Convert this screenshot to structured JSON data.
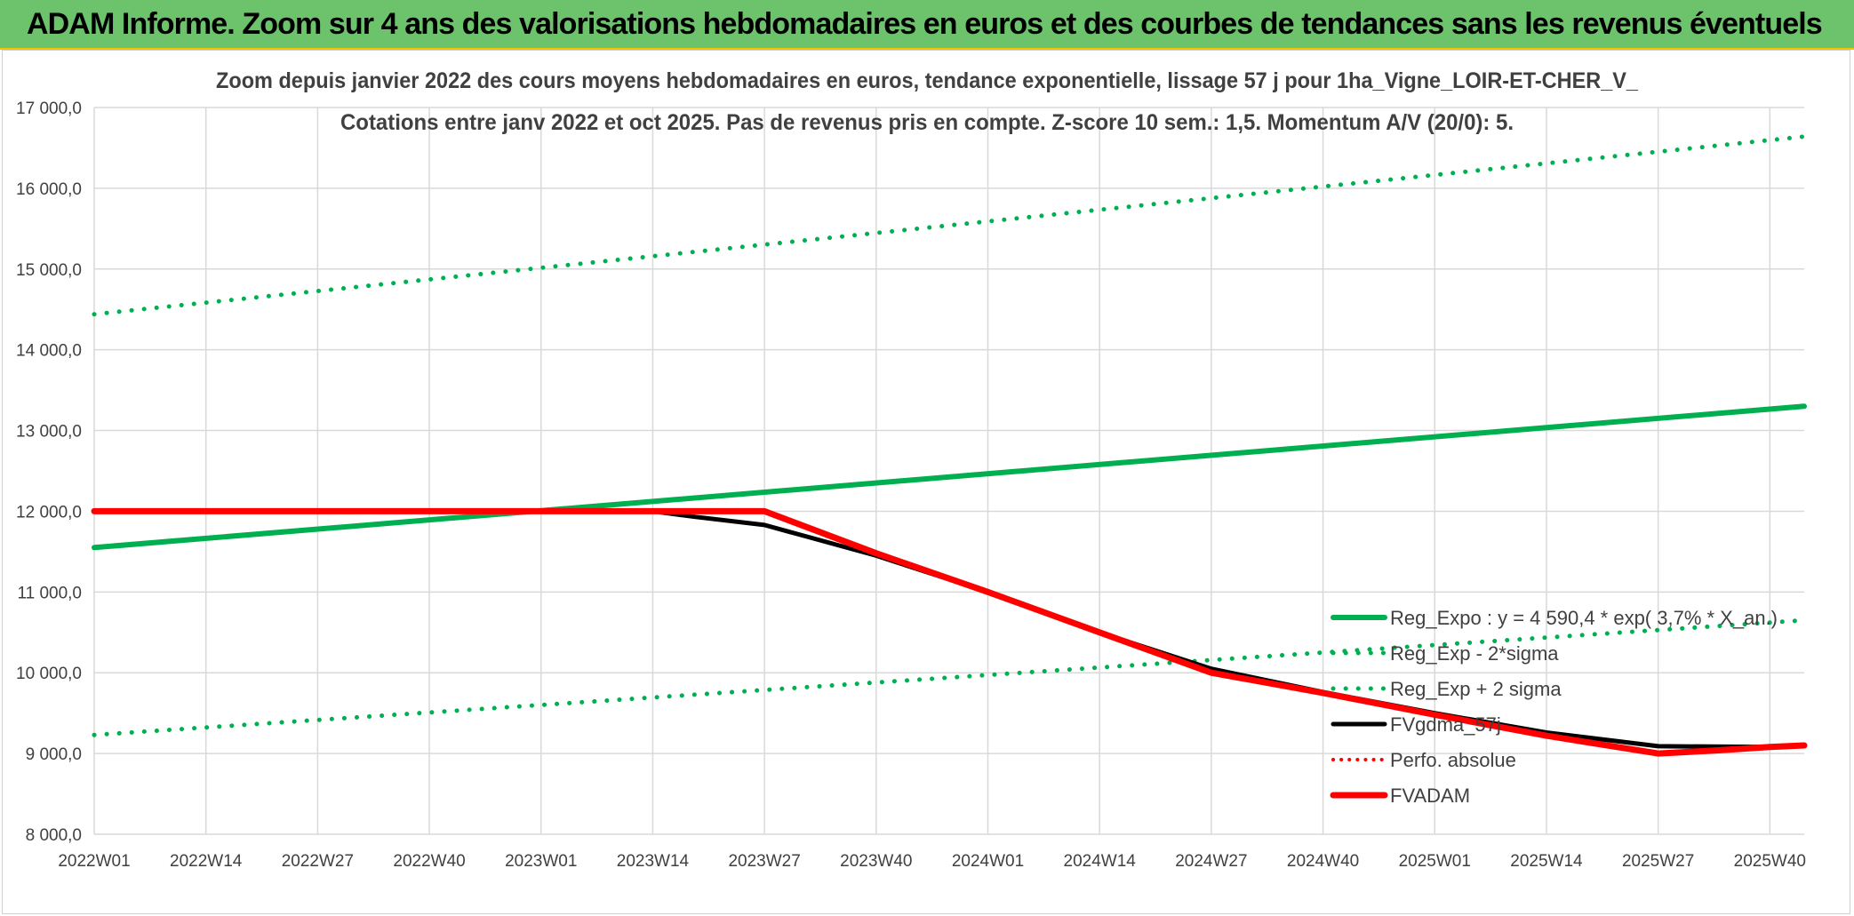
{
  "header": {
    "title": "ADAM Informe. Zoom sur 4 ans des valorisations hebdomadaires en euros et des courbes de tendances sans les revenus éventuels"
  },
  "colors": {
    "header_bg": "#6cc36c",
    "accent_line": "#f5c400",
    "trend_green": "#00b050",
    "fvadam_red": "#ff0000",
    "fvgdma_black": "#000000",
    "gridline": "#d9d9d9",
    "text": "#404040"
  },
  "chart_data": {
    "type": "line",
    "title": "Zoom depuis janvier 2022 des cours moyens hebdomadaires en euros, tendance exponentielle, lissage 57 j pour 1ha_Vigne_LOIR-ET-CHER_V_",
    "subtitle": "Cotations entre janv 2022 et oct 2025. Pas de revenus pris en compte. Z-score 10 sem.: 1,5. Momentum A/V (20/0): 5.",
    "xlabel": "",
    "ylabel": "",
    "ylim": [
      8000,
      17000
    ],
    "x_range_weeks": [
      0,
      199
    ],
    "xtick_labels": [
      "2022W01",
      "2022W14",
      "2022W27",
      "2022W40",
      "2023W01",
      "2023W14",
      "2023W27",
      "2023W40",
      "2024W01",
      "2024W14",
      "2024W27",
      "2024W40",
      "2025W01",
      "2025W14",
      "2025W27",
      "2025W40"
    ],
    "ytick_labels": [
      "8 000,0",
      "9 000,0",
      "10 000,0",
      "11 000,0",
      "12 000,0",
      "13 000,0",
      "14 000,0",
      "15 000,0",
      "16 000,0",
      "17 000,0"
    ],
    "yticks": [
      8000,
      9000,
      10000,
      11000,
      12000,
      13000,
      14000,
      15000,
      16000,
      17000
    ],
    "grid": true,
    "legend_position": "lower-right",
    "series": [
      {
        "name": "Reg_Expo : y = 4 590,4 * exp( 3,7% * X_an.)",
        "color": "#00b050",
        "style": "solid",
        "width": 6,
        "x": [
          0,
          199
        ],
        "y": [
          11550,
          13300
        ]
      },
      {
        "name": "Reg_Exp - 2*sigma",
        "color": "#00b050",
        "style": "dotted",
        "width": 5,
        "x": [
          0,
          199
        ],
        "y": [
          9230,
          10650
        ]
      },
      {
        "name": "Reg_Exp + 2 sigma",
        "color": "#00b050",
        "style": "dotted",
        "width": 5,
        "x": [
          0,
          199
        ],
        "y": [
          14440,
          16640
        ]
      },
      {
        "name": "FVgdma_57j",
        "color": "#000000",
        "style": "solid",
        "width": 5,
        "x": [
          0,
          52,
          65,
          70,
          78,
          91,
          104,
          117,
          130,
          143,
          156,
          169,
          182,
          195,
          199
        ],
        "y": [
          12000,
          12000,
          12000,
          11930,
          11830,
          11450,
          11000,
          10500,
          10050,
          9760,
          9500,
          9260,
          9090,
          9080,
          9100
        ]
      },
      {
        "name": "Perfo. absolue",
        "color": "#ff0000",
        "style": "dotted",
        "width": 4,
        "x": [],
        "y": []
      },
      {
        "name": "FVADAM",
        "color": "#ff0000",
        "style": "solid",
        "width": 7,
        "x": [
          0,
          52,
          78,
          91,
          104,
          117,
          130,
          143,
          156,
          169,
          182,
          189,
          195,
          199
        ],
        "y": [
          12000,
          12000,
          12000,
          11480,
          11000,
          10500,
          10000,
          9750,
          9480,
          9220,
          9000,
          9040,
          9080,
          9100
        ]
      }
    ]
  }
}
